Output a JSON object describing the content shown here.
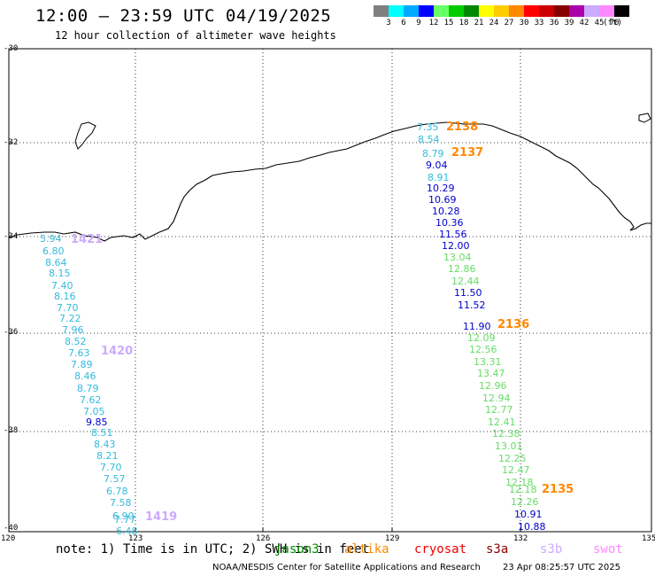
{
  "header": {
    "title": "12:00 – 23:59 UTC 04/19/2025",
    "subtitle": "12 hour collection of altimeter wave heights"
  },
  "colorbar": {
    "colors": [
      "#7f7f7f",
      "#00ffff",
      "#00aaff",
      "#0000ff",
      "#66ff66",
      "#00cc00",
      "#008800",
      "#ffff00",
      "#ffcc00",
      "#ff8800",
      "#ff0000",
      "#cc0000",
      "#880000",
      "#aa00aa",
      "#ccaaff",
      "#ff88ff",
      "#000000"
    ],
    "labels": [
      "3",
      "6",
      "9",
      "12",
      "15",
      "18",
      "21",
      "24",
      "27",
      "30",
      "33",
      "36",
      "39",
      "42",
      "45",
      "70",
      "(ft)"
    ]
  },
  "axes": {
    "y_labels": [
      "-30",
      "-32",
      "-34",
      "-36",
      "-38",
      "-40"
    ],
    "x_labels": [
      "120",
      "123",
      "126",
      "129",
      "132",
      "135"
    ]
  },
  "passes": [
    {
      "label": "2138",
      "color": "#ff8800"
    },
    {
      "label": "2137",
      "color": "#ff8800"
    },
    {
      "label": "1421",
      "color": "#ccaaff"
    },
    {
      "label": "2136",
      "color": "#ff8800"
    },
    {
      "label": "1420",
      "color": "#ccaaff"
    },
    {
      "label": "2135",
      "color": "#ff8800"
    },
    {
      "label": "1419",
      "color": "#ccaaff"
    }
  ],
  "points": [
    {
      "v": "7.35",
      "c": "#33bbdd"
    },
    {
      "v": "8.54",
      "c": "#33bbdd"
    },
    {
      "v": "8.79",
      "c": "#33bbdd"
    },
    {
      "v": "9.04",
      "c": "#0000cc"
    },
    {
      "v": "8.91",
      "c": "#33bbdd"
    },
    {
      "v": "10.29",
      "c": "#0000cc"
    },
    {
      "v": "10.69",
      "c": "#0000cc"
    },
    {
      "v": "10.28",
      "c": "#0000cc"
    },
    {
      "v": "10.36",
      "c": "#0000cc"
    },
    {
      "v": "11.56",
      "c": "#0000cc"
    },
    {
      "v": "12.00",
      "c": "#0000cc"
    },
    {
      "v": "13.04",
      "c": "#66dd66"
    },
    {
      "v": "12.86",
      "c": "#66dd66"
    },
    {
      "v": "12.44",
      "c": "#66dd66"
    },
    {
      "v": "11.50",
      "c": "#0000cc"
    },
    {
      "v": "11.52",
      "c": "#0000cc"
    },
    {
      "v": "11.90",
      "c": "#0000cc"
    },
    {
      "v": "12.09",
      "c": "#66dd66"
    },
    {
      "v": "12.56",
      "c": "#66dd66"
    },
    {
      "v": "13.31",
      "c": "#66dd66"
    },
    {
      "v": "13.47",
      "c": "#66dd66"
    },
    {
      "v": "12.96",
      "c": "#66dd66"
    },
    {
      "v": "12.94",
      "c": "#66dd66"
    },
    {
      "v": "12.77",
      "c": "#66dd66"
    },
    {
      "v": "12.41",
      "c": "#66dd66"
    },
    {
      "v": "12.38",
      "c": "#66dd66"
    },
    {
      "v": "13.01",
      "c": "#66dd66"
    },
    {
      "v": "12.25",
      "c": "#66dd66"
    },
    {
      "v": "12.47",
      "c": "#66dd66"
    },
    {
      "v": "12.18",
      "c": "#66dd66"
    },
    {
      "v": "12.18",
      "c": "#66dd66"
    },
    {
      "v": "12.26",
      "c": "#66dd66"
    },
    {
      "v": "10.91",
      "c": "#0000cc"
    },
    {
      "v": "10.88",
      "c": "#0000cc"
    },
    {
      "v": "5.94",
      "c": "#33bbdd"
    },
    {
      "v": "6.80",
      "c": "#33bbdd"
    },
    {
      "v": "8.64",
      "c": "#33bbdd"
    },
    {
      "v": "8.15",
      "c": "#33bbdd"
    },
    {
      "v": "7.40",
      "c": "#33bbdd"
    },
    {
      "v": "8.16",
      "c": "#33bbdd"
    },
    {
      "v": "7.70",
      "c": "#33bbdd"
    },
    {
      "v": "7.22",
      "c": "#33bbdd"
    },
    {
      "v": "7.96",
      "c": "#33bbdd"
    },
    {
      "v": "8.52",
      "c": "#33bbdd"
    },
    {
      "v": "7.63",
      "c": "#33bbdd"
    },
    {
      "v": "7.89",
      "c": "#33bbdd"
    },
    {
      "v": "8.46",
      "c": "#33bbdd"
    },
    {
      "v": "8.79",
      "c": "#33bbdd"
    },
    {
      "v": "7.62",
      "c": "#33bbdd"
    },
    {
      "v": "7.05",
      "c": "#33bbdd"
    },
    {
      "v": "9.85",
      "c": "#0000cc"
    },
    {
      "v": "8.51",
      "c": "#33bbdd"
    },
    {
      "v": "8.43",
      "c": "#33bbdd"
    },
    {
      "v": "8.21",
      "c": "#33bbdd"
    },
    {
      "v": "7.70",
      "c": "#33bbdd"
    },
    {
      "v": "7.57",
      "c": "#33bbdd"
    },
    {
      "v": "6.78",
      "c": "#33bbdd"
    },
    {
      "v": "7.58",
      "c": "#33bbdd"
    },
    {
      "v": "6.90",
      "c": "#33bbdd"
    },
    {
      "v": "7.77",
      "c": "#33bbdd"
    },
    {
      "v": "6.48",
      "c": "#33bbdd"
    }
  ],
  "footer": {
    "note": "note: 1) Time is in UTC; 2) SWH is in feet",
    "satellites": [
      {
        "name": "jason3",
        "color": "#008800"
      },
      {
        "name": "altika",
        "color": "#ff8800"
      },
      {
        "name": "cryosat",
        "color": "#ee0000"
      },
      {
        "name": "s3a",
        "color": "#880000"
      },
      {
        "name": "s3b",
        "color": "#ccaaff"
      },
      {
        "name": "swot",
        "color": "#ff88ff"
      }
    ],
    "credit": "NOAA/NESDIS Center for Satellite Applications and Research",
    "timestamp": "23 Apr 08:25:57 UTC 2025"
  }
}
